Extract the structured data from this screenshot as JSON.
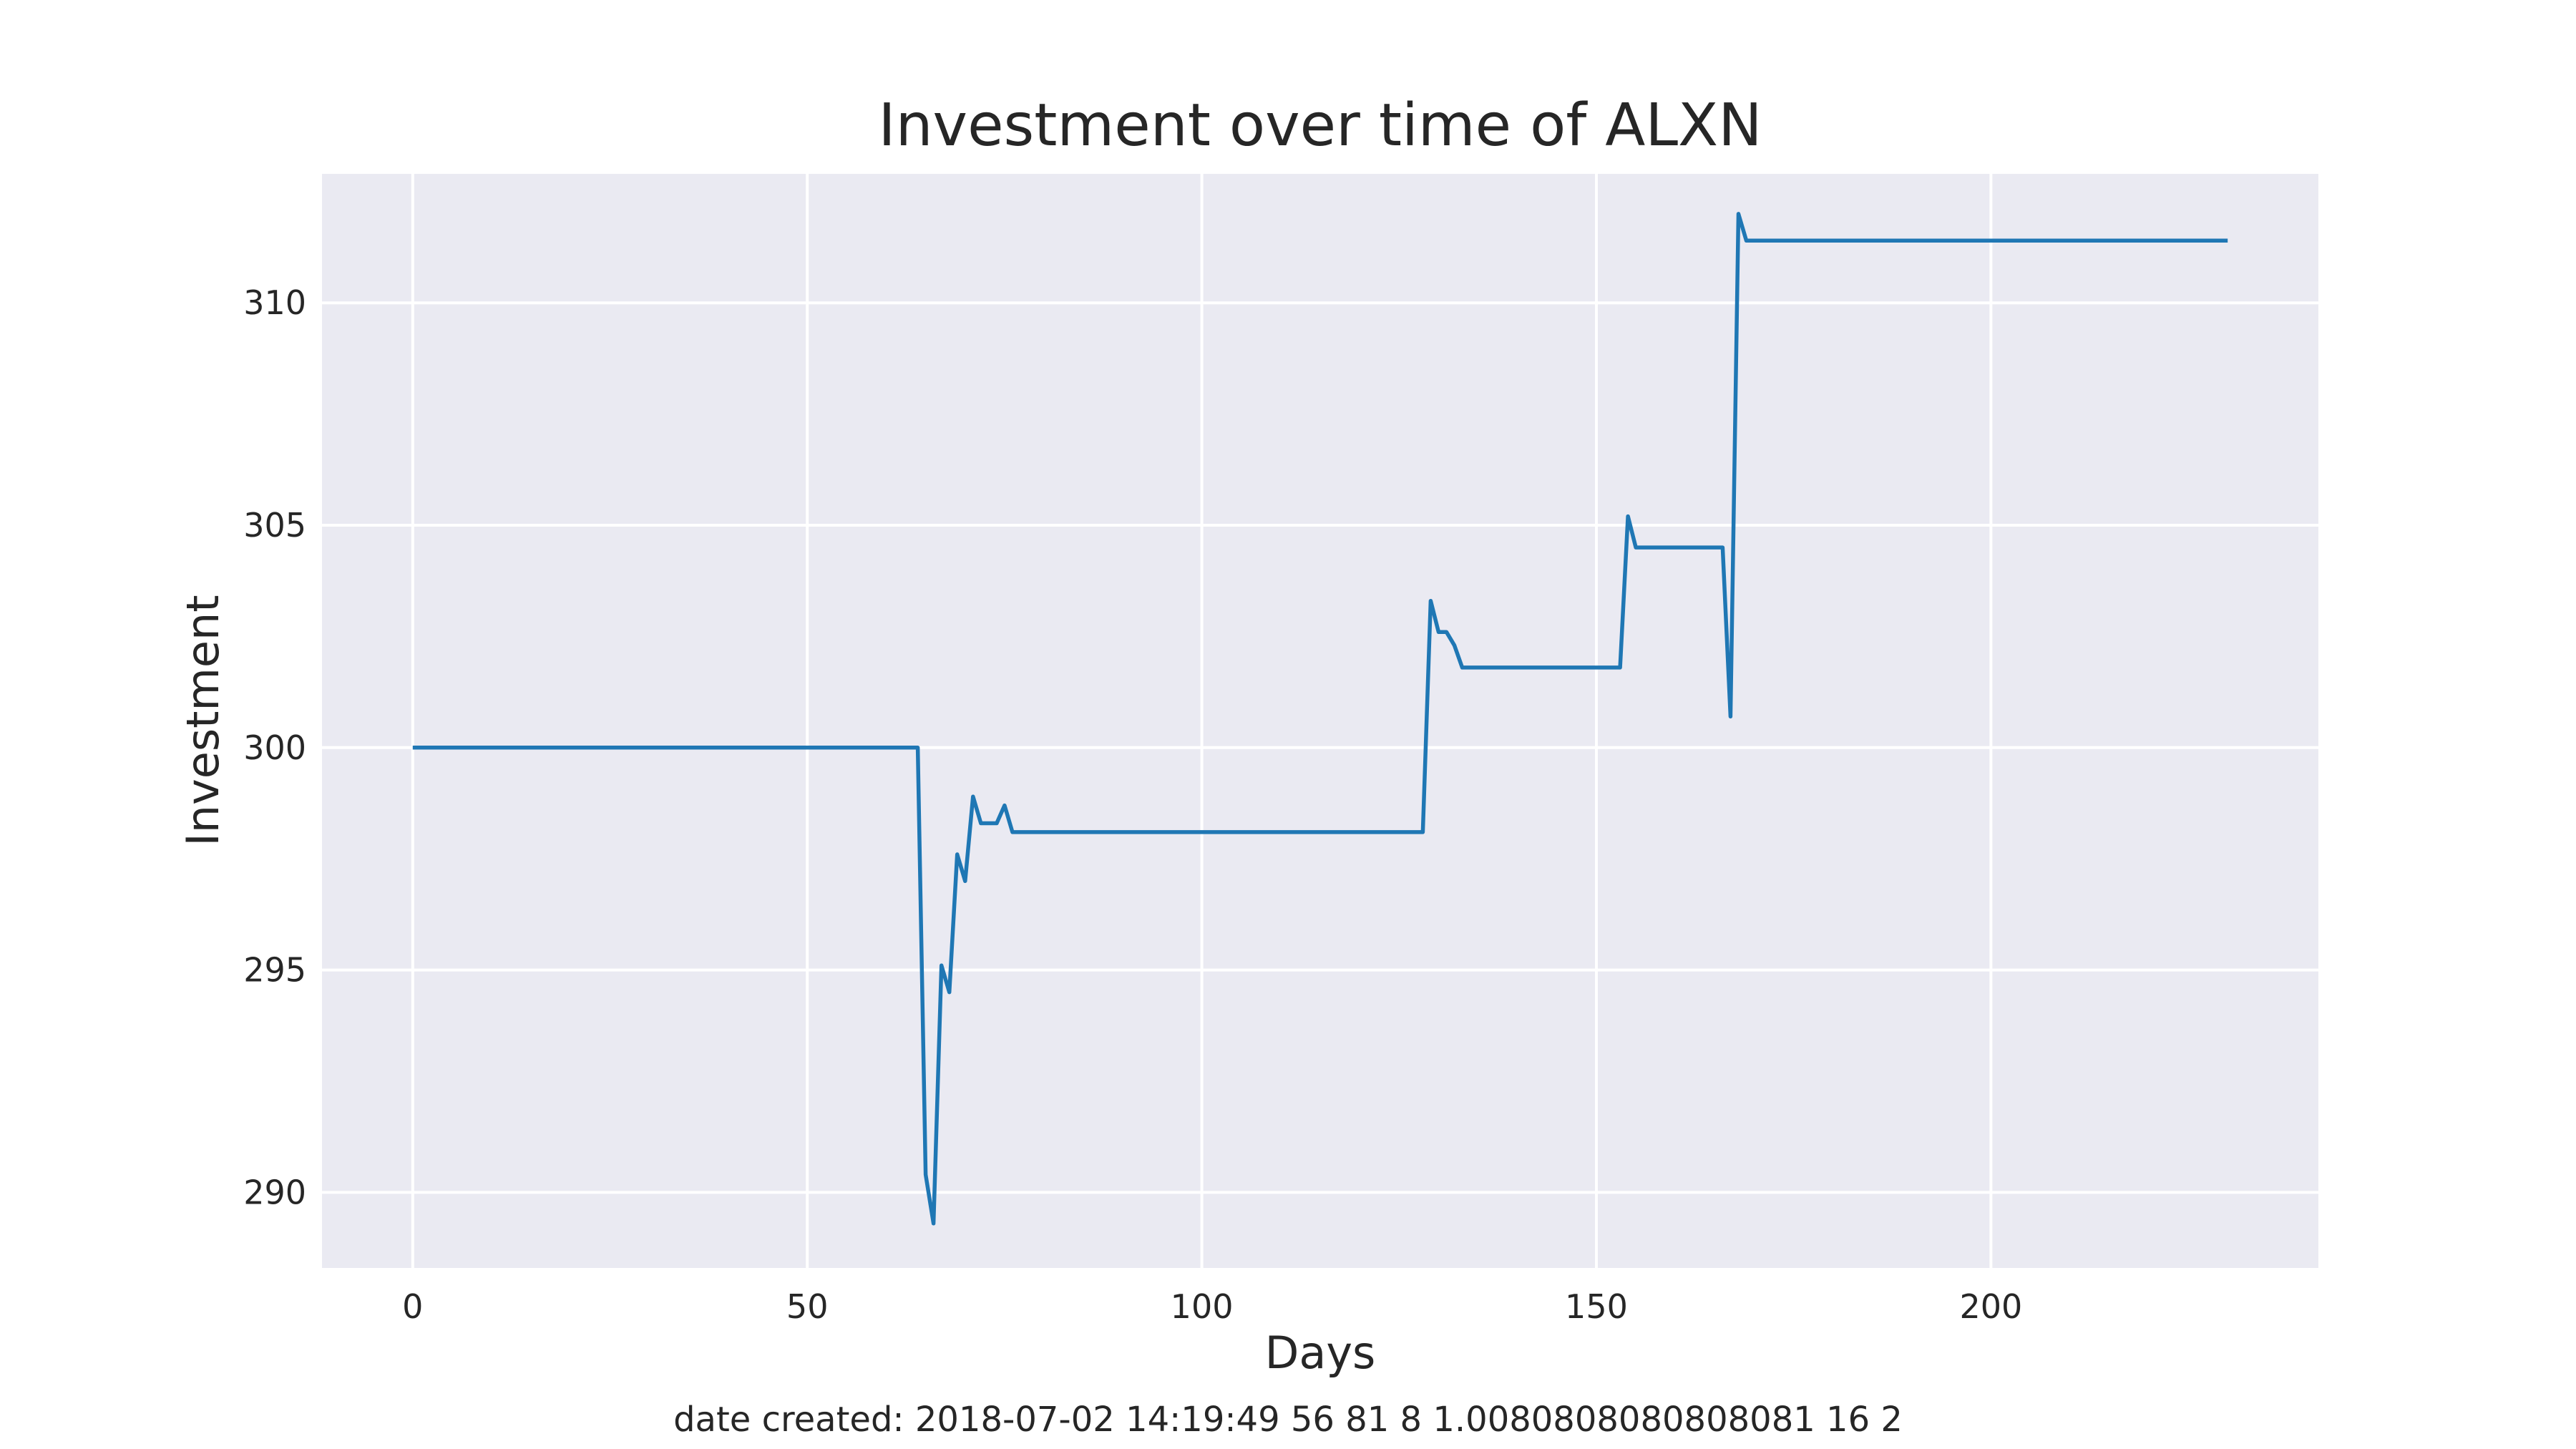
{
  "chart_data": {
    "type": "line",
    "title": "Investment over time of ALXN",
    "xlabel": "Days",
    "ylabel": "Investment",
    "footer": "date created: 2018-07-02 14:19:49 56 81 8 1.0080808080808081 16 2",
    "xlim": [
      -11.5,
      241.5
    ],
    "ylim": [
      288.3,
      312.9
    ],
    "x_ticks": [
      0,
      50,
      100,
      150,
      200
    ],
    "y_ticks": [
      290,
      295,
      300,
      305,
      310
    ],
    "grid": true,
    "colors": {
      "background": "#eaeaf2",
      "grid": "#ffffff",
      "line": "#1f77b4"
    },
    "series": [
      {
        "x": [
          0,
          64,
          65,
          66,
          67,
          68,
          69,
          70,
          71,
          72,
          73,
          74,
          75,
          76,
          128,
          129,
          130,
          131,
          132,
          133,
          153,
          154,
          155,
          166,
          167,
          168,
          169,
          230
        ],
        "y": [
          300.0,
          300.0,
          290.4,
          289.3,
          295.1,
          294.5,
          297.6,
          297.0,
          298.9,
          298.3,
          298.3,
          298.3,
          298.7,
          298.1,
          298.1,
          303.3,
          302.6,
          302.6,
          302.3,
          301.8,
          301.8,
          305.2,
          304.5,
          304.5,
          300.7,
          312.0,
          311.4,
          311.4
        ]
      }
    ]
  }
}
